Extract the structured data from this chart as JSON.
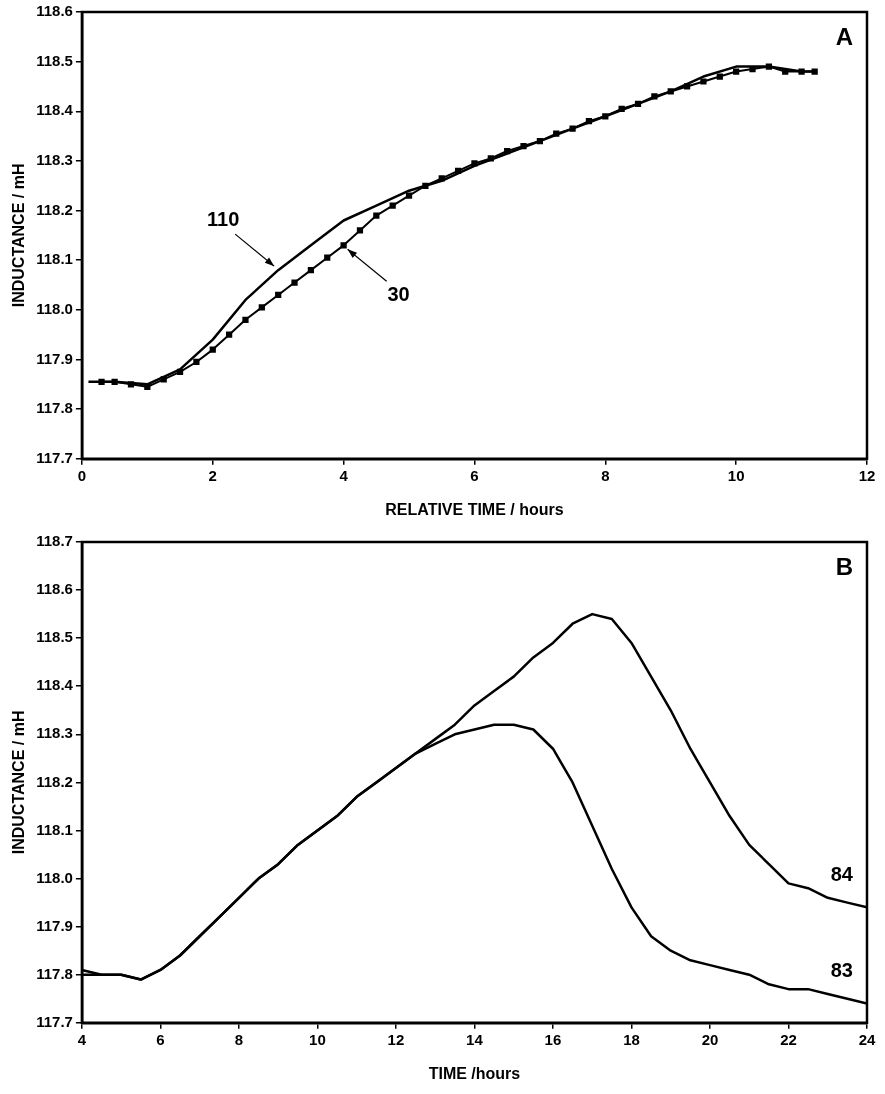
{
  "chart_data": [
    {
      "type": "line",
      "xlabel": "RELATIVE TIME / hours",
      "ylabel": "INDUCTANCE / mH",
      "xlim": [
        0,
        12
      ],
      "xticks": [
        0,
        2,
        4,
        6,
        8,
        10,
        12
      ],
      "ylim": [
        117.7,
        118.6
      ],
      "yticks": [
        {
          "value": 117.7,
          "label": "117.7"
        },
        {
          "value": 117.8,
          "label": "117.8"
        },
        {
          "value": 117.9,
          "label": "117.9"
        },
        {
          "value": 118.0,
          "label": "118.0"
        },
        {
          "value": 118.1,
          "label": "118.1"
        },
        {
          "value": 118.2,
          "label": "118.2"
        },
        {
          "value": 118.3,
          "label": "118.3"
        },
        {
          "value": 118.4,
          "label": "118.4"
        },
        {
          "value": 118.5,
          "label": "118.5"
        },
        {
          "value": 118.6,
          "label": "118.6"
        }
      ],
      "grid": false,
      "legend": false,
      "annotations": [
        "A",
        {
          "text": "110",
          "x": 3.0,
          "y": 118.08
        },
        {
          "text": "30",
          "x": 4.0,
          "y": 118.13
        }
      ],
      "series": [
        {
          "color": "#000000",
          "marker": "none",
          "x": [
            0.1,
            0.5,
            1.0,
            1.5,
            2.0,
            2.5,
            3.0,
            3.5,
            4.0,
            4.5,
            5.0,
            5.5,
            6.0,
            6.5,
            7.0,
            7.5,
            8.0,
            8.5,
            9.0,
            9.5,
            10.0,
            10.5,
            11.0,
            11.2
          ],
          "values": [
            117.855,
            117.855,
            117.85,
            117.88,
            117.94,
            118.02,
            118.08,
            118.13,
            118.18,
            118.21,
            118.24,
            118.26,
            118.29,
            118.315,
            118.34,
            118.365,
            118.39,
            118.415,
            118.44,
            118.47,
            118.49,
            118.49,
            118.48,
            118.48
          ]
        },
        {
          "color": "#000000",
          "marker": "square",
          "x": [
            0.3,
            0.5,
            0.75,
            1.0,
            1.25,
            1.5,
            1.75,
            2.0,
            2.25,
            2.5,
            2.75,
            3.0,
            3.25,
            3.5,
            3.75,
            4.0,
            4.25,
            4.5,
            4.75,
            5.0,
            5.25,
            5.5,
            5.75,
            6.0,
            6.25,
            6.5,
            6.75,
            7.0,
            7.25,
            7.5,
            7.75,
            8.0,
            8.25,
            8.5,
            8.75,
            9.0,
            9.25,
            9.5,
            9.75,
            10.0,
            10.25,
            10.5,
            10.75,
            11.0,
            11.2
          ],
          "values": [
            117.855,
            117.855,
            117.85,
            117.845,
            117.86,
            117.875,
            117.895,
            117.92,
            117.95,
            117.98,
            118.005,
            118.03,
            118.055,
            118.08,
            118.105,
            118.13,
            118.16,
            118.19,
            118.21,
            118.23,
            118.25,
            118.265,
            118.28,
            118.295,
            118.305,
            118.32,
            118.33,
            118.34,
            118.355,
            118.365,
            118.38,
            118.39,
            118.405,
            118.415,
            118.43,
            118.44,
            118.45,
            118.46,
            118.47,
            118.48,
            118.485,
            118.49,
            118.48,
            118.48,
            118.48
          ]
        }
      ]
    },
    {
      "type": "line",
      "xlabel": "TIME /hours",
      "ylabel": "INDUCTANCE / mH",
      "xlim": [
        4,
        24
      ],
      "xticks": [
        4,
        6,
        8,
        10,
        12,
        14,
        16,
        18,
        20,
        22,
        24
      ],
      "ylim": [
        117.7,
        118.7
      ],
      "yticks": [
        {
          "value": 117.7,
          "label": "117.7"
        },
        {
          "value": 117.8,
          "label": "117.8"
        },
        {
          "value": 117.9,
          "label": "117.9"
        },
        {
          "value": 118.0,
          "label": "118.0"
        },
        {
          "value": 118.1,
          "label": "118.1"
        },
        {
          "value": 118.2,
          "label": "118.2"
        },
        {
          "value": 118.3,
          "label": "118.3"
        },
        {
          "value": 118.4,
          "label": "118.4"
        },
        {
          "value": 118.5,
          "label": "118.5"
        },
        {
          "value": 118.6,
          "label": "118.6"
        },
        {
          "value": 118.7,
          "label": "118.7"
        }
      ],
      "grid": false,
      "legend": false,
      "annotations": [
        "B"
      ],
      "series": [
        {
          "name": "84",
          "color": "#000000",
          "marker": "none",
          "x": [
            4,
            4.5,
            5,
            5.5,
            6,
            6.5,
            7,
            7.5,
            8,
            8.5,
            9,
            9.5,
            10,
            10.5,
            11,
            11.5,
            12,
            12.5,
            13,
            13.5,
            14,
            14.5,
            15,
            15.5,
            16,
            16.5,
            17,
            17.5,
            18,
            18.5,
            19,
            19.5,
            20,
            20.5,
            21,
            21.5,
            22,
            22.5,
            23,
            23.5,
            24
          ],
          "values": [
            117.8,
            117.8,
            117.8,
            117.79,
            117.81,
            117.84,
            117.88,
            117.92,
            117.96,
            118.0,
            118.03,
            118.07,
            118.1,
            118.13,
            118.17,
            118.2,
            118.23,
            118.26,
            118.29,
            118.32,
            118.36,
            118.39,
            118.42,
            118.46,
            118.49,
            118.53,
            118.55,
            118.54,
            118.49,
            118.42,
            118.35,
            118.27,
            118.2,
            118.13,
            118.07,
            118.03,
            117.99,
            117.98,
            117.96,
            117.95,
            117.94
          ]
        },
        {
          "name": "83",
          "color": "#000000",
          "marker": "none",
          "x": [
            4,
            4.5,
            5,
            5.5,
            6,
            6.5,
            7,
            7.5,
            8,
            8.5,
            9,
            9.5,
            10,
            10.5,
            11,
            11.5,
            12,
            12.5,
            13,
            13.5,
            14,
            14.5,
            15,
            15.5,
            16,
            16.5,
            17,
            17.5,
            18,
            18.5,
            19,
            19.5,
            20,
            20.5,
            21,
            21.5,
            22,
            22.5,
            23,
            23.5,
            24
          ],
          "values": [
            117.81,
            117.8,
            117.8,
            117.79,
            117.81,
            117.84,
            117.88,
            117.92,
            117.96,
            118.0,
            118.03,
            118.07,
            118.1,
            118.13,
            118.17,
            118.2,
            118.23,
            118.26,
            118.28,
            118.3,
            118.31,
            118.32,
            118.32,
            118.31,
            118.27,
            118.2,
            118.11,
            118.02,
            117.94,
            117.88,
            117.85,
            117.83,
            117.82,
            117.81,
            117.8,
            117.78,
            117.77,
            117.77,
            117.76,
            117.75,
            117.74
          ]
        }
      ]
    }
  ]
}
